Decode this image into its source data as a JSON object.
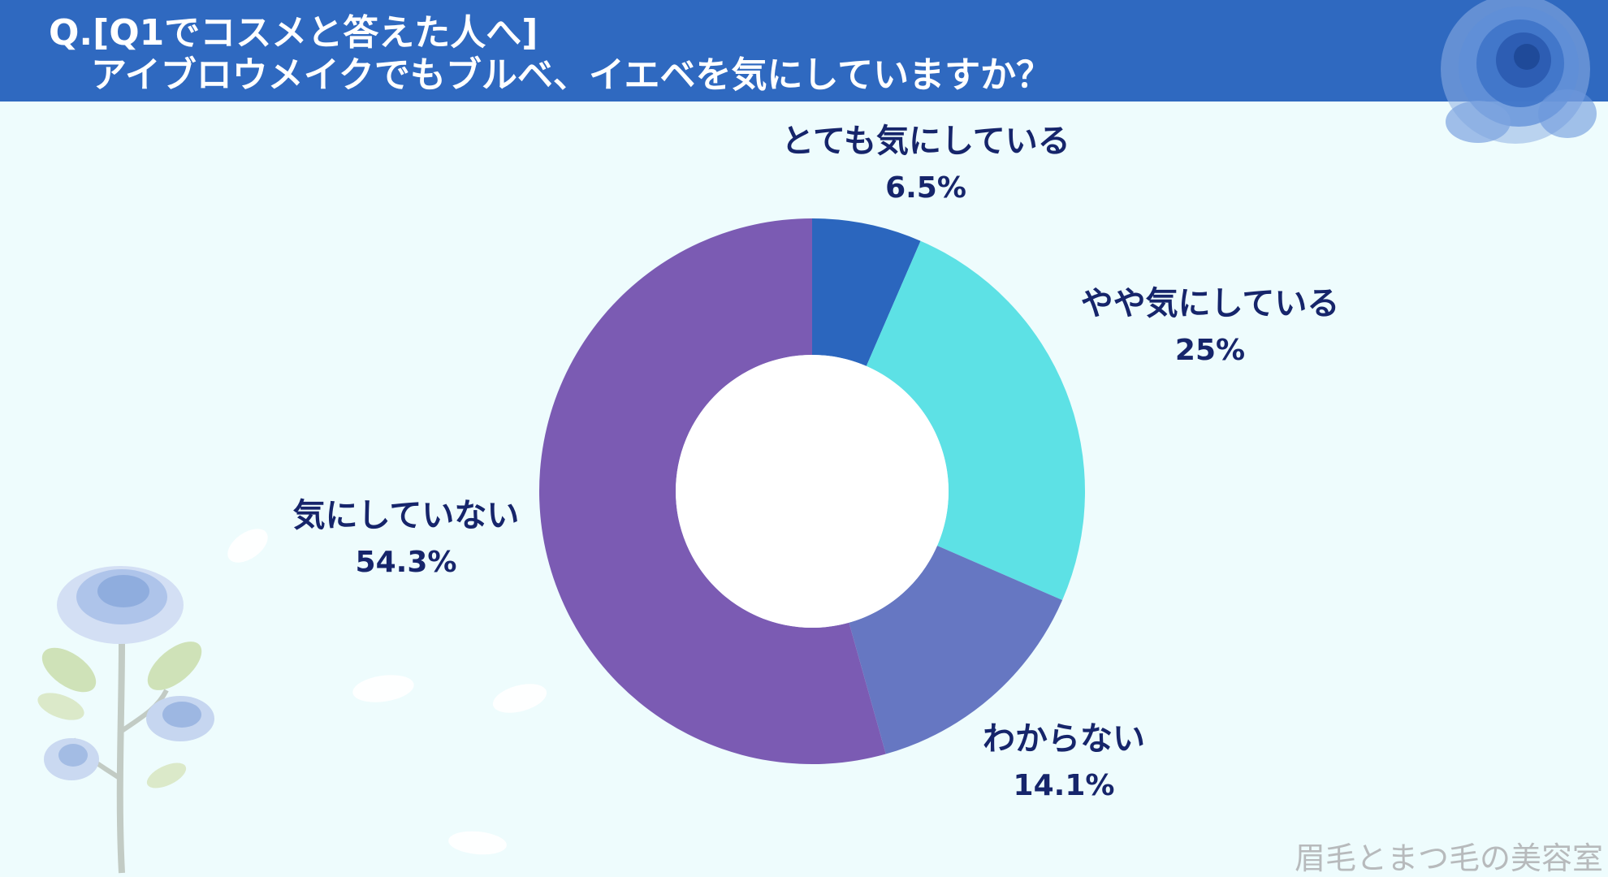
{
  "header": {
    "title_line_1": "Q.[Q1でコスメと答えた人へ]",
    "title_line_2": "アイブロウメイクでもブルベ、イエベを気にしていますか？"
  },
  "chart_data": {
    "type": "pie",
    "categories": [
      "とても気にしている",
      "やや気にしている",
      "わからない",
      "気にしていない"
    ],
    "values": [
      6.5,
      25,
      14.1,
      54.3
    ],
    "value_labels": [
      "6.5%",
      "25%",
      "14.1%",
      "54.3%"
    ],
    "colors": [
      "#2b66be",
      "#5de1e5",
      "#6677c2",
      "#7b5bb3"
    ],
    "donut": true,
    "start": "top",
    "direction": "clockwise",
    "legend": "none"
  },
  "colors": {
    "header_bg": "#2f69c0",
    "page_bg": "#eefcfd",
    "label_text": "#16256b",
    "watermark": "#b7babc"
  },
  "decorations": {
    "top_right": "blue-rose-icon",
    "bottom_left": "rose-stem-illustration-icon"
  },
  "watermark": "眉毛とまつ毛の美容室"
}
